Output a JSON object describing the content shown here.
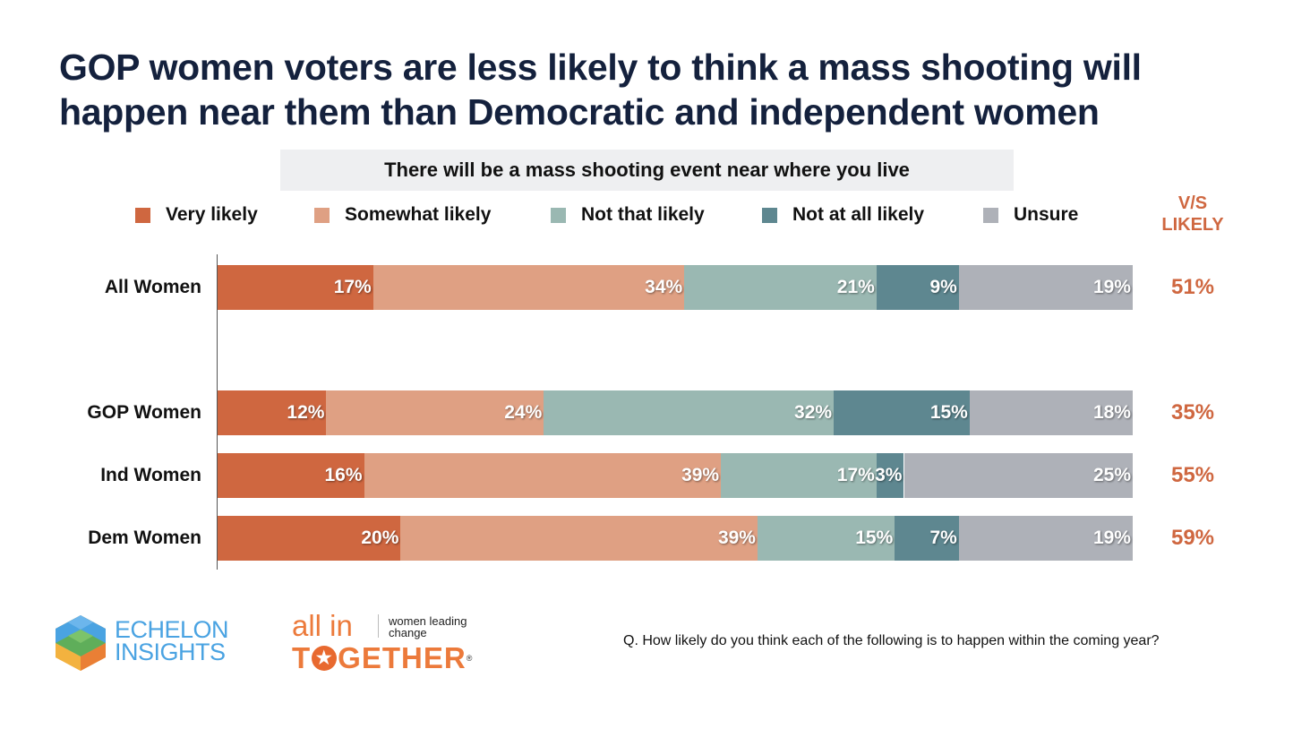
{
  "title": "GOP women voters are less likely to think a mass shooting will happen near them than Democratic and independent women",
  "subtitle": "There will be a mass shooting event near where you live",
  "vs_likely_header": [
    "V/S",
    "LIKELY"
  ],
  "footnote": "Q. How likely do you think each of the following is to happen within the coming year?",
  "logos": {
    "echelon": [
      "ECHELON",
      "INSIGHTS"
    ],
    "allin": {
      "top": "all in",
      "tagline": [
        "women leading",
        "change"
      ],
      "bottom_pre": "T",
      "bottom_post": "GETHER",
      "registered": "®"
    }
  },
  "colors": {
    "very_likely": "#cf6740",
    "somewhat_likely": "#dfa083",
    "not_that_likely": "#9ab8b2",
    "not_at_all_likely": "#5e8790",
    "unsure": "#aeb1b8",
    "accent": "#cf6740"
  },
  "chart_data": {
    "type": "bar",
    "orientation": "horizontal",
    "stacked": true,
    "title": "GOP women voters are less likely to think a mass shooting will happen near them than Democratic and independent women",
    "subtitle": "There will be a mass shooting event near where you live",
    "xlabel": "",
    "ylabel": "",
    "xlim": [
      0,
      100
    ],
    "grid": false,
    "legend_position": "top",
    "categories": [
      "All Women",
      "GOP Women",
      "Ind Women",
      "Dem Women"
    ],
    "series": [
      {
        "name": "Very likely",
        "color": "#cf6740",
        "values": [
          17,
          12,
          16,
          20
        ]
      },
      {
        "name": "Somewhat likely",
        "color": "#dfa083",
        "values": [
          34,
          24,
          39,
          39
        ]
      },
      {
        "name": "Not that likely",
        "color": "#9ab8b2",
        "values": [
          21,
          32,
          17,
          15
        ]
      },
      {
        "name": "Not at all likely",
        "color": "#5e8790",
        "values": [
          9,
          15,
          3,
          7
        ]
      },
      {
        "name": "Unsure",
        "color": "#aeb1b8",
        "values": [
          19,
          18,
          25,
          19
        ]
      }
    ],
    "summary_column": {
      "label": "V/S LIKELY",
      "values": [
        "51%",
        "35%",
        "55%",
        "59%"
      ]
    }
  }
}
